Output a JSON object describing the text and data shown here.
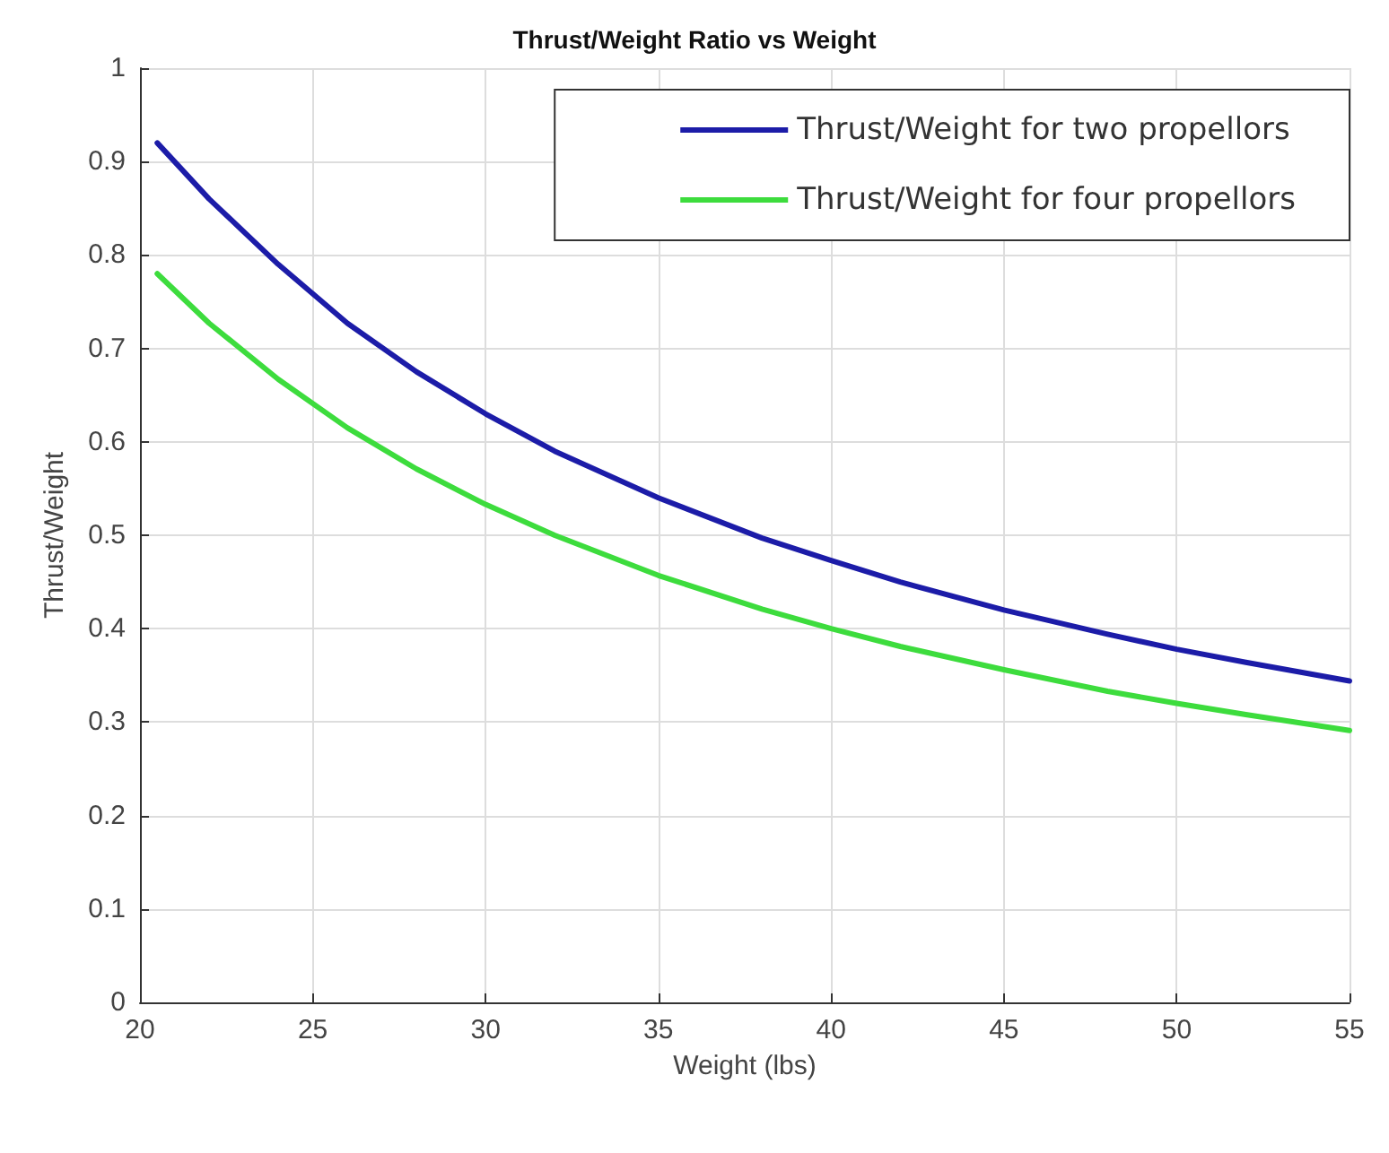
{
  "chart_data": {
    "type": "line",
    "title": "Thrust/Weight Ratio vs Weight",
    "xlabel": "Weight (lbs)",
    "ylabel": "Thrust/Weight",
    "x": [
      20.5,
      22,
      24,
      26,
      28,
      30,
      32,
      35,
      38,
      40,
      42,
      45,
      48,
      50,
      52,
      55
    ],
    "series": [
      {
        "name": "Thrust/Weight for two propellors",
        "color": "#1c1ca8",
        "values": [
          0.92,
          0.86,
          0.79,
          0.727,
          0.675,
          0.63,
          0.59,
          0.54,
          0.497,
          0.473,
          0.45,
          0.42,
          0.394,
          0.378,
          0.364,
          0.344
        ]
      },
      {
        "name": "Thrust/Weight for four propellors",
        "color": "#3ddc3d",
        "values": [
          0.78,
          0.727,
          0.667,
          0.615,
          0.571,
          0.533,
          0.5,
          0.457,
          0.421,
          0.4,
          0.381,
          0.356,
          0.333,
          0.32,
          0.308,
          0.291
        ]
      }
    ],
    "xlim": [
      20,
      55
    ],
    "xticks": [
      20,
      25,
      30,
      35,
      40,
      45,
      50,
      55
    ],
    "ylim": [
      0,
      1
    ],
    "yticks": [
      0,
      0.1,
      0.2,
      0.3,
      0.4,
      0.5,
      0.6,
      0.7,
      0.8,
      0.9,
      1
    ],
    "grid": true,
    "legend": "top right",
    "marker": "none",
    "line_style": "solid"
  }
}
